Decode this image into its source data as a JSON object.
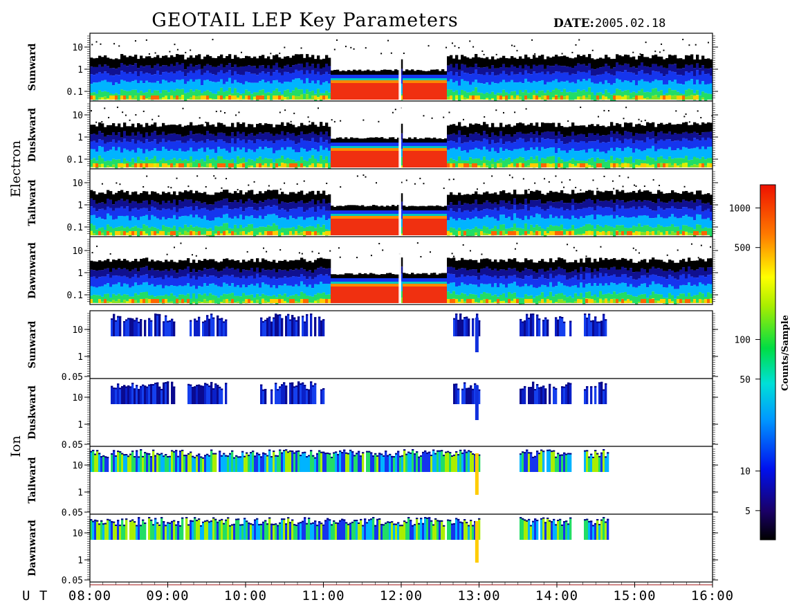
{
  "chart_data": {
    "type": "heatmap",
    "title": "GEOTAIL LEP Key Parameters",
    "date_label": "DATE:",
    "date_value": "2005.02.18",
    "x_axis_label": "U T",
    "x_ticks": [
      "08:00",
      "09:00",
      "10:00",
      "11:00",
      "12:00",
      "13:00",
      "14:00",
      "15:00",
      "16:00"
    ],
    "x_range": [
      "08:00",
      "16:00"
    ],
    "groups": [
      {
        "name": "Electron",
        "y_ticks": [
          "10",
          "1",
          "0.1"
        ],
        "ylim": [
          0.05,
          30
        ],
        "panels": [
          "Sunward",
          "Duskward",
          "Tailward",
          "Dawnward"
        ]
      },
      {
        "name": "Ion",
        "y_ticks": [
          "10",
          "1",
          "0.05"
        ],
        "ylim": [
          0.05,
          30
        ],
        "panels": [
          "Sunward",
          "Duskward",
          "Tailward",
          "Dawnward"
        ]
      }
    ],
    "colorbar": {
      "label": "Counts/Sample",
      "scale": "log",
      "range": [
        3,
        1500
      ],
      "ticks": [
        "1000",
        "500",
        "100",
        "50",
        "10",
        "5"
      ],
      "tick_values": [
        1000,
        500,
        100,
        50,
        10,
        5
      ]
    },
    "electron_intervals": [
      {
        "start": "11:05",
        "end": "11:58",
        "level": "high"
      },
      {
        "start": "12:00",
        "end": "12:35",
        "level": "high"
      }
    ],
    "ion_presence": [
      {
        "start": "08:15",
        "end": "09:05"
      },
      {
        "start": "09:15",
        "end": "09:45"
      },
      {
        "start": "10:10",
        "end": "11:00"
      },
      {
        "start": "12:40",
        "end": "13:00"
      },
      {
        "start": "13:30",
        "end": "14:10"
      },
      {
        "start": "14:20",
        "end": "14:40"
      }
    ]
  }
}
